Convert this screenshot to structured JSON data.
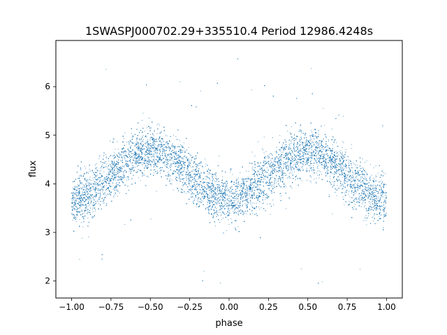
{
  "chart_data": {
    "type": "scatter",
    "title": "1SWASPJ000702.29+335510.4 Period 12986.4248s",
    "xlabel": "phase",
    "ylabel": "flux",
    "xlim": [
      -1.1,
      1.1
    ],
    "ylim": [
      1.65,
      6.95
    ],
    "xticks": [
      -1.0,
      -0.75,
      -0.5,
      -0.25,
      0.0,
      0.25,
      0.5,
      0.75,
      1.0
    ],
    "xtick_labels": [
      "−1.00",
      "−0.75",
      "−0.50",
      "−0.25",
      "0.00",
      "0.25",
      "0.50",
      "0.75",
      "1.00"
    ],
    "yticks": [
      2,
      3,
      4,
      5,
      6
    ],
    "ytick_labels": [
      "2",
      "3",
      "4",
      "5",
      "6"
    ],
    "grid": false,
    "marker_color": "#1f77b4",
    "series": [
      {
        "points_description": "dense folded light curve, phase-symmetric",
        "x_range": [
          -1.0,
          1.0
        ],
        "model": {
          "type": "sinusoid",
          "mean_flux": 4.17,
          "amplitude": 0.5,
          "peaks_at_phase": [
            -0.5,
            0.5
          ],
          "minima_at_phase": [
            -1.0,
            0.0,
            1.0
          ]
        },
        "scatter_sigma": 0.25,
        "outlier_range": [
          1.9,
          6.7
        ]
      }
    ]
  }
}
